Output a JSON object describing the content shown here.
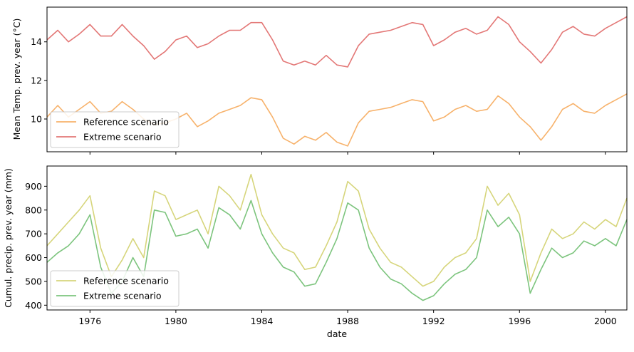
{
  "xlabel": "date",
  "x_tick_labels": [
    "1976",
    "1980",
    "1984",
    "1988",
    "1992",
    "1996",
    "2000"
  ],
  "chart_data": [
    {
      "type": "line",
      "ylabel": "Mean Temp. prev. year (°C)",
      "xlim": [
        1974.0,
        2001.0
      ],
      "ylim": [
        8.3,
        15.8
      ],
      "yticks": [
        10,
        12,
        14
      ],
      "ytick_labels": [
        "10",
        "12",
        "14"
      ],
      "x": [
        1974.0,
        1974.5,
        1975.0,
        1975.5,
        1976.0,
        1976.5,
        1977.0,
        1977.5,
        1978.0,
        1978.5,
        1979.0,
        1979.5,
        1980.0,
        1980.5,
        1981.0,
        1981.5,
        1982.0,
        1982.5,
        1983.0,
        1983.5,
        1984.0,
        1984.5,
        1985.0,
        1985.5,
        1986.0,
        1986.5,
        1987.0,
        1987.5,
        1988.0,
        1988.5,
        1989.0,
        1989.5,
        1990.0,
        1990.5,
        1991.0,
        1991.5,
        1992.0,
        1992.5,
        1993.0,
        1993.5,
        1994.0,
        1994.5,
        1995.0,
        1995.5,
        1996.0,
        1996.5,
        1997.0,
        1997.5,
        1998.0,
        1998.5,
        1999.0,
        1999.5,
        2000.0,
        2000.5,
        2001.0
      ],
      "legend_position": "lower left",
      "series": [
        {
          "name": "Reference scenario",
          "color": "#f7b26b",
          "values": [
            10.1,
            10.7,
            10.1,
            10.5,
            10.9,
            10.3,
            10.4,
            10.9,
            10.5,
            10.0,
            9.7,
            9.8,
            10.0,
            10.3,
            9.6,
            9.9,
            10.3,
            10.5,
            10.7,
            11.1,
            11.0,
            10.1,
            9.0,
            8.7,
            9.1,
            8.9,
            9.3,
            8.8,
            8.6,
            9.8,
            10.4,
            10.5,
            10.6,
            10.8,
            11.0,
            10.9,
            9.9,
            10.1,
            10.5,
            10.7,
            10.4,
            10.5,
            11.2,
            10.8,
            10.1,
            9.6,
            8.9,
            9.6,
            10.5,
            10.8,
            10.4,
            10.3,
            10.7,
            11.0,
            11.3
          ]
        },
        {
          "name": "Extreme scenario",
          "color": "#e37776",
          "values": [
            14.1,
            14.6,
            14.0,
            14.4,
            14.9,
            14.3,
            14.3,
            14.9,
            14.3,
            13.8,
            13.1,
            13.5,
            14.1,
            14.3,
            13.7,
            13.9,
            14.3,
            14.6,
            14.6,
            15.0,
            15.0,
            14.1,
            13.0,
            12.8,
            13.0,
            12.8,
            13.3,
            12.8,
            12.7,
            13.8,
            14.4,
            14.5,
            14.6,
            14.8,
            15.0,
            14.9,
            13.8,
            14.1,
            14.5,
            14.7,
            14.4,
            14.6,
            15.3,
            14.9,
            14.0,
            13.5,
            12.9,
            13.6,
            14.5,
            14.8,
            14.4,
            14.3,
            14.7,
            15.0,
            15.3
          ]
        }
      ]
    },
    {
      "type": "line",
      "ylabel": "Cumul. precip. prev. year (mm)",
      "xlim": [
        1974.0,
        2001.0
      ],
      "ylim": [
        380,
        985
      ],
      "yticks": [
        400,
        500,
        600,
        700,
        800,
        900
      ],
      "ytick_labels": [
        "400",
        "500",
        "600",
        "700",
        "800",
        "900"
      ],
      "x": [
        1974.0,
        1974.5,
        1975.0,
        1975.5,
        1976.0,
        1976.5,
        1977.0,
        1977.5,
        1978.0,
        1978.5,
        1979.0,
        1979.5,
        1980.0,
        1980.5,
        1981.0,
        1981.5,
        1982.0,
        1982.5,
        1983.0,
        1983.5,
        1984.0,
        1984.5,
        1985.0,
        1985.5,
        1986.0,
        1986.5,
        1987.0,
        1987.5,
        1988.0,
        1988.5,
        1989.0,
        1989.5,
        1990.0,
        1990.5,
        1991.0,
        1991.5,
        1992.0,
        1992.5,
        1993.0,
        1993.5,
        1994.0,
        1994.5,
        1995.0,
        1995.5,
        1996.0,
        1996.5,
        1997.0,
        1997.5,
        1998.0,
        1998.5,
        1999.0,
        1999.5,
        2000.0,
        2000.5,
        2001.0
      ],
      "legend_position": "lower left",
      "series": [
        {
          "name": "Reference scenario",
          "color": "#d6d57b",
          "values": [
            650,
            700,
            750,
            800,
            860,
            640,
            520,
            590,
            680,
            600,
            880,
            860,
            760,
            780,
            800,
            700,
            900,
            860,
            800,
            950,
            780,
            700,
            640,
            620,
            550,
            560,
            650,
            750,
            920,
            880,
            720,
            640,
            580,
            560,
            520,
            480,
            500,
            560,
            600,
            620,
            680,
            900,
            820,
            870,
            780,
            500,
            620,
            720,
            680,
            700,
            750,
            720,
            760,
            730,
            850
          ]
        },
        {
          "name": "Extreme scenario",
          "color": "#7cc47d",
          "values": [
            580,
            620,
            650,
            700,
            780,
            560,
            450,
            500,
            600,
            520,
            800,
            790,
            690,
            700,
            720,
            640,
            810,
            780,
            720,
            840,
            700,
            620,
            560,
            540,
            480,
            490,
            580,
            680,
            830,
            800,
            640,
            560,
            510,
            490,
            450,
            420,
            440,
            490,
            530,
            550,
            600,
            800,
            730,
            770,
            700,
            450,
            550,
            640,
            600,
            620,
            670,
            650,
            680,
            650,
            760
          ]
        }
      ]
    }
  ]
}
